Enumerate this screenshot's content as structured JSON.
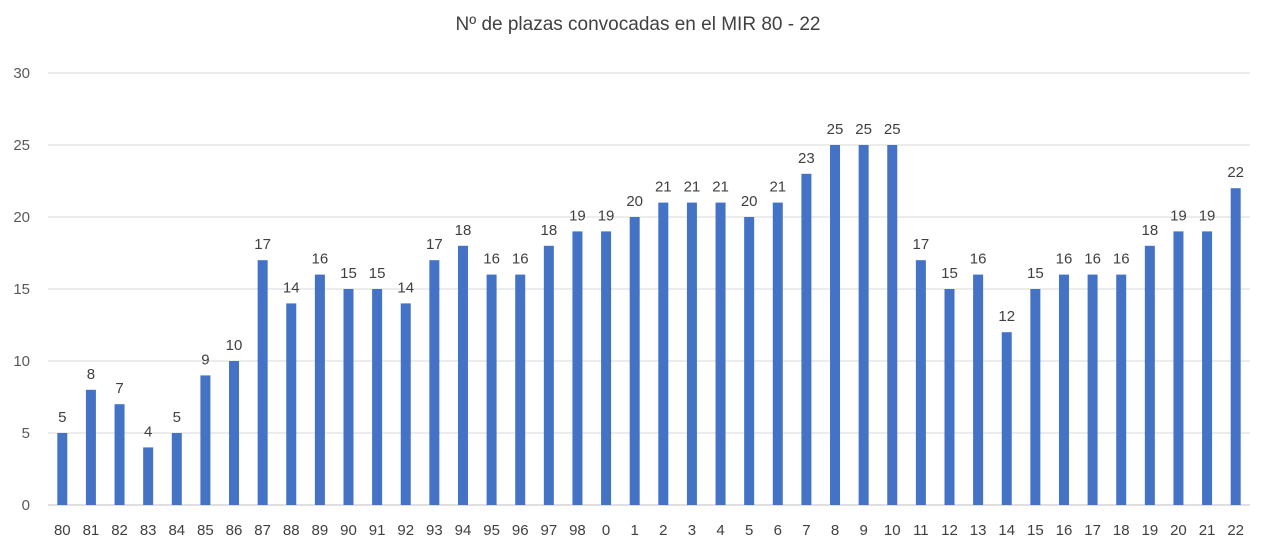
{
  "chart_data": {
    "type": "bar",
    "title": "Nº de plazas convocadas en el MIR 80 - 22",
    "xlabel": "",
    "ylabel": "",
    "ylim": [
      0,
      30
    ],
    "yticks": [
      0,
      5,
      10,
      15,
      20,
      25,
      30
    ],
    "grid": true,
    "legend": "none",
    "bar_color": "#4472C4",
    "categories": [
      "80",
      "81",
      "82",
      "83",
      "84",
      "85",
      "86",
      "87",
      "88",
      "89",
      "90",
      "91",
      "92",
      "93",
      "94",
      "95",
      "96",
      "97",
      "98",
      "0",
      "1",
      "2",
      "3",
      "4",
      "5",
      "6",
      "7",
      "8",
      "9",
      "10",
      "11",
      "12",
      "13",
      "14",
      "15",
      "16",
      "17",
      "18",
      "19",
      "20",
      "21",
      "22"
    ],
    "values": [
      5,
      8,
      7,
      4,
      5,
      9,
      10,
      17,
      14,
      16,
      15,
      15,
      14,
      17,
      18,
      16,
      16,
      18,
      19,
      19,
      20,
      21,
      21,
      21,
      20,
      21,
      23,
      25,
      25,
      25,
      17,
      15,
      16,
      12,
      15,
      16,
      16,
      16,
      18,
      19,
      19,
      22
    ]
  }
}
